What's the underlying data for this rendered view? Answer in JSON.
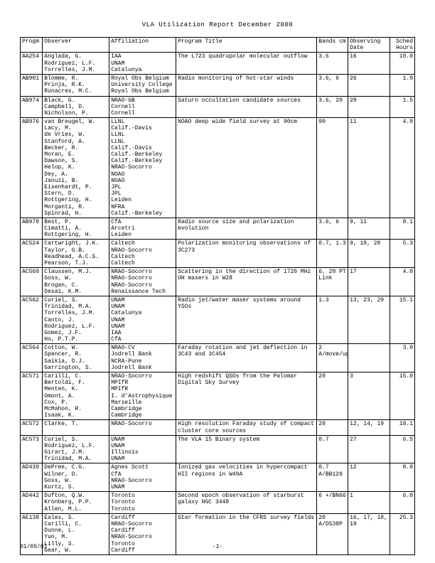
{
  "title": "VLA Utilization Report December 2000",
  "footer": {
    "date": "01/05/01",
    "page": "-1-"
  },
  "columns": [
    "Progm",
    "Observer",
    "Affiliation",
    "Program Title",
    "Bands cm",
    "Observing Date",
    "Sched Hours"
  ],
  "colors": {
    "bg": "#ffffff",
    "fg": "#000000",
    "border": "#000000"
  },
  "rows": [
    {
      "prog": "AA254",
      "obs": [
        "Anglada, G.",
        "Rodriguez, L.F.",
        "Torrelles, J.M."
      ],
      "aff": [
        "IAA",
        "UNAM",
        "Catalunya"
      ],
      "title": "The L723 quadrupolar molecular outflow",
      "bands": "3.6",
      "date": "16",
      "hours": "10.0"
    },
    {
      "prog": "AB901",
      "obs": [
        "Blomme, R.",
        "Prinja, R.K.",
        "Runacres, M.C."
      ],
      "aff": [
        "Royal Obs Belgium",
        "University College",
        "Royal Obs Belgium"
      ],
      "title": "Radio monitoring of hot-star winds",
      "bands": "3.6, 6",
      "date": "26",
      "hours": "1.0"
    },
    {
      "prog": "AB974",
      "obs": [
        "Black, G.",
        "Campbell, D.",
        "Nicholson, P."
      ],
      "aff": [
        "NRAO-GB",
        "Cornell",
        "Cornell"
      ],
      "title": "Saturn occultation candidate sources",
      "bands": "3.6, 20",
      "date": "28",
      "hours": "1.5"
    },
    {
      "prog": "AB976",
      "obs": [
        "van Breugel, W.",
        "Lacy, M.",
        "de Vries, W.",
        "Stanford, A.",
        "Becker, R.",
        "Moran, E.",
        "Dawson, S.",
        "Helop, K.",
        "Dey, A.",
        "Januzi, B.",
        "Eisenhardt, P.",
        "Stern, D.",
        "Rottgering, H.",
        "Morganti, R.",
        "Spinrad, H."
      ],
      "aff": [
        "LLNL",
        "Calif.-Davis",
        "LLNL",
        "LLNL",
        "Calif.-Davis",
        "Calif.-Berkeley",
        "Calif.-Berkeley",
        "NRAO-Socorro",
        "NOAO",
        "NOAO",
        "JPL",
        "JPL",
        "Leiden",
        "NFRA",
        "Calif.-Berkeley"
      ],
      "title": "NOAO deep wide field survey at 90cm",
      "bands": "90",
      "date": "11",
      "hours": "4.0"
    },
    {
      "prog": "AB978",
      "obs": [
        "Best, P.",
        "Cimatti, A.",
        "Rottgering, H."
      ],
      "aff": [
        "CfA",
        "Arcetri",
        "Leiden"
      ],
      "title": "Radio source size and polarization evolution",
      "bands": "3.6, 6",
      "date": "9, 11",
      "hours": "8.1"
    },
    {
      "prog": "AC524",
      "obs": [
        "Cartwright, J.K.",
        "Taylor, G.B.",
        "Readhead, A.C.S.",
        "Pearson, T.J."
      ],
      "aff": [
        "Caltech",
        "NRAO-Socorro",
        "Caltech",
        "Caltech"
      ],
      "title": "Polarization monitoring observations of 3C273",
      "bands": "0.7, 1.3",
      "date": "9, 18, 28",
      "hours": "5.3"
    },
    {
      "prog": "AC560",
      "obs": [
        "Claussen, M.J.",
        "Goss, W.",
        "Brogan, C.",
        "Desai, K.M."
      ],
      "aff": [
        "NRAO-Socorro",
        "NRAO-Socorro",
        "NRAO-Socorro",
        "Renaissance Tech"
      ],
      "title": "Scattering in the direction of 1720 MHz OH masers in W28",
      "bands": "6, 20 PT Link",
      "date": "17",
      "hours": "4.0"
    },
    {
      "prog": "AC562",
      "obs": [
        "Curiel, S.",
        "Trinidad, M.A.",
        "Torrelles, J.M.",
        "Canto, J.",
        "Rodriguez, L.F.",
        "Gomez, J.F.",
        "Ho, P.T.P."
      ],
      "aff": [
        "UNAM",
        "UNAM",
        "Catalunya",
        "UNAM",
        "UNAM",
        "IAA",
        "CfA"
      ],
      "title": "Radio jet/water maser systems around YSOs",
      "bands": "1.3",
      "date": "13, 23, 29",
      "hours": "15.1"
    },
    {
      "prog": "AC564",
      "obs": [
        "Cotton, W.",
        "Spencer, R.",
        "Saikia, D.J.",
        "Garrington, S."
      ],
      "aff": [
        "NRAO-CV",
        "Jodrell Bank",
        "NCRA-Pune",
        "Jodrell Bank"
      ],
      "title": "Faraday rotation and jet deflection in 3C43 and 3C454",
      "bands": "2 A/move/up",
      "date": "",
      "hours": "3.0"
    },
    {
      "prog": "AC571",
      "obs": [
        "Carilli, C.",
        "Bertoldi, F.",
        "Menten, K.",
        "Omont, A.",
        "Cox, P.",
        "McMahon, R.",
        "Isaak, K."
      ],
      "aff": [
        "NRAO-Socorro",
        "MPIfR",
        "MPIfR",
        "I. d'Astrophysique",
        "Marseille",
        "Cambridge",
        "Cambridge"
      ],
      "title": "High redshift QSOs from the Palomar Digital Sky Survey",
      "bands": "20",
      "date": "3",
      "hours": "15.0"
    },
    {
      "prog": "AC572",
      "obs": [
        "Clarke, T."
      ],
      "aff": [
        "NRAO-Socorro"
      ],
      "title": "High resolution Faraday study of compact cluster core sources",
      "bands": "20",
      "date": "12, 14, 19",
      "hours": "18.1"
    },
    {
      "prog": "AC573",
      "obs": [
        "Curiel, S.",
        "Rodriguez, L.F.",
        "Girart, J.M.",
        "Trinidad, M.A."
      ],
      "aff": [
        "UNAM",
        "UNAM",
        "Illinois",
        "UNAM"
      ],
      "title": "The VLA 15 Binary system",
      "bands": "0.7",
      "date": "27",
      "hours": "6.5"
    },
    {
      "prog": "AD439",
      "obs": [
        "DePree, C.G.",
        "Wilner, D.",
        "Goss, W.",
        "Kurtz, S."
      ],
      "aff": [
        "Agnes Scott",
        "CfA",
        "NRAO-Socorro",
        "UNAM"
      ],
      "title": "Ionized gas velocities in hypercompact HII regions in W49A",
      "bands": "0.7 A/BB129",
      "date": "12",
      "hours": "8.0"
    },
    {
      "prog": "AD442",
      "obs": [
        "Dufton, Q.W.",
        "Kronberg, P.P.",
        "Allen, M.L."
      ],
      "aff": [
        "Toronto",
        "Toronto",
        "Toronto"
      ],
      "title": "Second epoch observation of starburst galaxy NGC 3448",
      "bands": "6 +/BN66",
      "date": "1",
      "hours": "6.0"
    },
    {
      "prog": "AE138",
      "obs": [
        "Eales, S.",
        "Carilli, C.",
        "Dunne, L.",
        "Yun, M.",
        "Lilly, S.",
        "Gear, W."
      ],
      "aff": [
        "Cardiff",
        "NRAO-Socorro",
        "Cardiff",
        "NRAO-Socorro",
        "Toronto",
        "Cardiff"
      ],
      "title": "Star formation in the CFRS survey fields",
      "bands": "20 A/DS38P",
      "date": "16, 17, 18, 19",
      "hours": "25.3"
    }
  ]
}
